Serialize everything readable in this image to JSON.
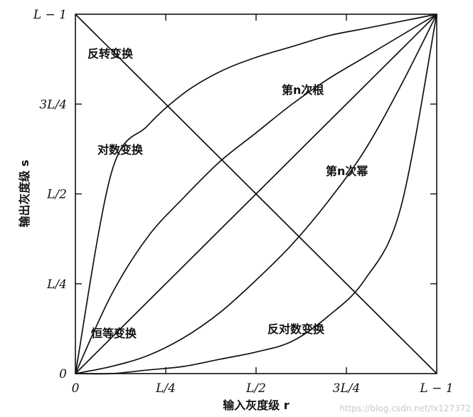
{
  "chart_data": {
    "type": "line",
    "title": "",
    "xlabel": "输入灰度级 r",
    "ylabel": "输出灰度级 s",
    "xlim": [
      0,
      1
    ],
    "ylim": [
      0,
      1
    ],
    "x_ticks": [
      {
        "value": 0,
        "label": "0"
      },
      {
        "value": 0.25,
        "label": "L/4"
      },
      {
        "value": 0.5,
        "label": "L/2"
      },
      {
        "value": 0.75,
        "label": "3L/4"
      },
      {
        "value": 1,
        "label": "L − 1"
      }
    ],
    "y_ticks": [
      {
        "value": 0,
        "label": "0"
      },
      {
        "value": 0.25,
        "label": "L/4"
      },
      {
        "value": 0.5,
        "label": "L/2"
      },
      {
        "value": 0.75,
        "label": "3L/4"
      },
      {
        "value": 1,
        "label": "L − 1"
      }
    ],
    "grid": false,
    "x": [
      0,
      0.1,
      0.2,
      0.3,
      0.4,
      0.5,
      0.6,
      0.7,
      0.8,
      0.9,
      1.0
    ],
    "series": [
      {
        "name": "反转变换",
        "values": [
          1.0,
          0.9,
          0.8,
          0.7,
          0.6,
          0.5,
          0.4,
          0.3,
          0.2,
          0.1,
          0.0
        ]
      },
      {
        "name": "对数变换",
        "values": [
          0.0,
          0.56,
          0.69,
          0.78,
          0.84,
          0.88,
          0.91,
          0.94,
          0.96,
          0.98,
          1.0
        ]
      },
      {
        "name": "第n次根",
        "values": [
          0.0,
          0.22,
          0.38,
          0.49,
          0.59,
          0.67,
          0.75,
          0.82,
          0.88,
          0.94,
          1.0
        ]
      },
      {
        "name": "恒等变换",
        "values": [
          0.0,
          0.1,
          0.2,
          0.3,
          0.4,
          0.5,
          0.6,
          0.7,
          0.8,
          0.9,
          1.0
        ]
      },
      {
        "name": "第n次幂",
        "values": [
          0.0,
          0.02,
          0.05,
          0.1,
          0.17,
          0.26,
          0.36,
          0.48,
          0.62,
          0.8,
          1.0
        ]
      },
      {
        "name": "反对数变换",
        "values": [
          0.0,
          0.0,
          0.01,
          0.02,
          0.04,
          0.06,
          0.09,
          0.16,
          0.26,
          0.46,
          1.0
        ]
      }
    ]
  },
  "watermark": "https://blog.csdn.net/lx127372"
}
